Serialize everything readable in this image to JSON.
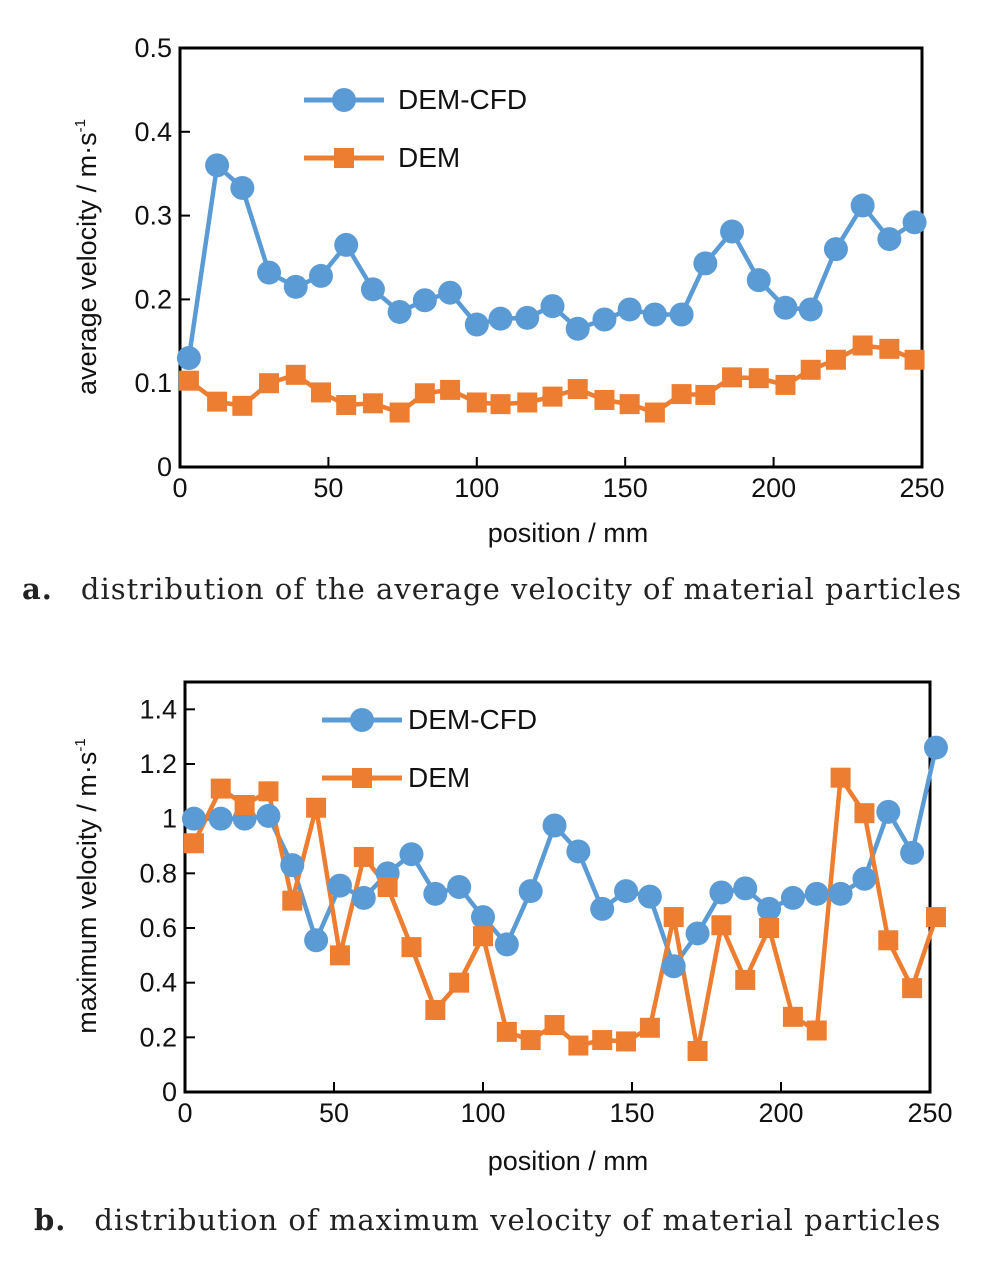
{
  "captions": [
    {
      "letter": "a.",
      "text": "distribution of the average velocity of material particles"
    },
    {
      "letter": "b.",
      "text": "distribution of maximum velocity of material particles"
    }
  ],
  "colors": {
    "dem_cfd": "#5b9bd5",
    "dem": "#ed7d31"
  },
  "chart_data": [
    {
      "type": "line",
      "xlabel": "position / mm",
      "ylabel": "average velocity / m·s",
      "ylabel_superscript": "-1",
      "xlim": [
        0,
        250
      ],
      "ylim": [
        0,
        0.5
      ],
      "xticks": [
        0,
        50,
        100,
        150,
        200,
        250
      ],
      "yticks": [
        0,
        0.1,
        0.2,
        0.3,
        0.4,
        0.5
      ],
      "ytick_labels": [
        "0",
        "0.1",
        "0.2",
        "0.3",
        "0.4",
        "0.5"
      ],
      "legend_position": "top-left",
      "series": [
        {
          "name": "DEM-CFD",
          "marker": "circle",
          "x": [
            3,
            12.5,
            21,
            30,
            39,
            47.5,
            56,
            65,
            74,
            82.5,
            91,
            100,
            108,
            117,
            125.5,
            134,
            143,
            151.5,
            160,
            169,
            177,
            186,
            195,
            204,
            212.5,
            221,
            230,
            239,
            247.5
          ],
          "y": [
            0.13,
            0.36,
            0.333,
            0.232,
            0.215,
            0.228,
            0.265,
            0.212,
            0.185,
            0.199,
            0.208,
            0.17,
            0.177,
            0.178,
            0.192,
            0.165,
            0.176,
            0.188,
            0.182,
            0.182,
            0.243,
            0.281,
            0.223,
            0.19,
            0.188,
            0.26,
            0.312,
            0.272,
            0.292
          ]
        },
        {
          "name": "DEM",
          "marker": "square",
          "x": [
            3,
            12.5,
            21,
            30,
            39,
            47.5,
            56,
            65,
            74,
            82.5,
            91,
            100,
            108,
            117,
            125.5,
            134,
            143,
            151.5,
            160,
            169,
            177,
            186,
            195,
            204,
            212.5,
            221,
            230,
            239,
            247.5
          ],
          "y": [
            0.103,
            0.078,
            0.073,
            0.1,
            0.11,
            0.089,
            0.074,
            0.076,
            0.065,
            0.088,
            0.092,
            0.077,
            0.075,
            0.077,
            0.084,
            0.093,
            0.08,
            0.075,
            0.065,
            0.087,
            0.086,
            0.107,
            0.106,
            0.098,
            0.116,
            0.128,
            0.145,
            0.141,
            0.128
          ]
        }
      ]
    },
    {
      "type": "line",
      "xlabel": "position / mm",
      "ylabel": "maximum velocity / m·s",
      "ylabel_superscript": "-1",
      "xlim": [
        0,
        250
      ],
      "ylim": [
        0,
        1.5
      ],
      "xticks": [
        0,
        50,
        100,
        150,
        200,
        250
      ],
      "yticks": [
        0,
        0.2,
        0.4,
        0.6,
        0.8,
        1,
        1.2,
        1.4
      ],
      "ytick_labels": [
        "0",
        "0.2",
        "0.4",
        "0.6",
        "0.8",
        "1",
        "1.2",
        "1.4"
      ],
      "legend_position": "top-left",
      "series": [
        {
          "name": "DEM-CFD",
          "marker": "circle",
          "x": [
            3,
            12,
            20,
            28,
            36,
            44,
            52,
            60,
            68,
            76,
            84,
            92,
            100,
            108,
            116,
            124,
            132,
            140,
            148,
            156,
            164,
            172,
            180,
            188,
            196,
            204,
            212,
            220,
            228,
            236,
            244,
            252
          ],
          "y": [
            1.0,
            1.0,
            1.0,
            1.01,
            0.83,
            0.555,
            0.755,
            0.71,
            0.8,
            0.87,
            0.725,
            0.75,
            0.64,
            0.54,
            0.735,
            0.975,
            0.88,
            0.67,
            0.735,
            0.715,
            0.46,
            0.58,
            0.73,
            0.745,
            0.67,
            0.71,
            0.725,
            0.725,
            0.78,
            1.025,
            0.875,
            1.26
          ]
        },
        {
          "name": "DEM",
          "marker": "square",
          "x": [
            3,
            12,
            20,
            28,
            36,
            44,
            52,
            60,
            68,
            76,
            84,
            92,
            100,
            108,
            116,
            124,
            132,
            140,
            148,
            156,
            164,
            172,
            180,
            188,
            196,
            204,
            212,
            220,
            228,
            236,
            244,
            252
          ],
          "y": [
            0.91,
            1.11,
            1.05,
            1.1,
            0.7,
            1.04,
            0.5,
            0.86,
            0.75,
            0.53,
            0.3,
            0.4,
            0.57,
            0.22,
            0.19,
            0.245,
            0.17,
            0.19,
            0.185,
            0.235,
            0.64,
            0.15,
            0.61,
            0.41,
            0.6,
            0.275,
            0.225,
            1.15,
            1.02,
            0.555,
            0.38,
            0.64
          ]
        }
      ]
    }
  ]
}
